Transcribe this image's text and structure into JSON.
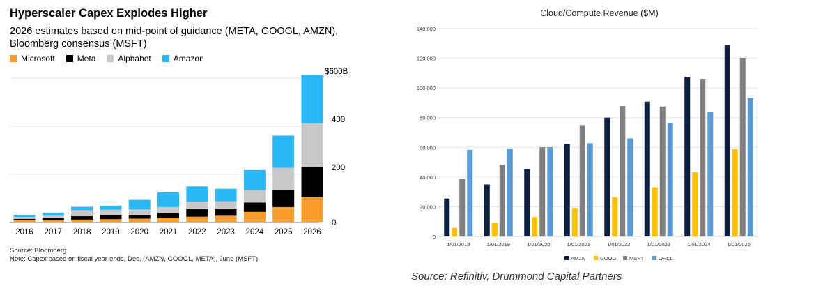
{
  "chart_data": [
    {
      "type": "bar",
      "stacked": true,
      "title": "Hyperscaler Capex Explodes Higher",
      "subtitle": "2026 estimates based on mid-point of guidance (META, GOOGL, AMZN), Bloomberg consensus (MSFT)",
      "categories": [
        "2016",
        "2017",
        "2018",
        "2019",
        "2020",
        "2021",
        "2022",
        "2023",
        "2024",
        "2025",
        "2026"
      ],
      "series": [
        {
          "name": "Microsoft",
          "color": "#f89c2c",
          "values": [
            10,
            10,
            12,
            14,
            16,
            20,
            24,
            28,
            44,
            64,
            105
          ]
        },
        {
          "name": "Meta",
          "color": "#000000",
          "values": [
            5,
            8,
            14,
            16,
            16,
            19,
            31,
            27,
            39,
            72,
            126
          ]
        },
        {
          "name": "Alphabet",
          "color": "#c8c8c8",
          "values": [
            8,
            10,
            25,
            23,
            22,
            25,
            32,
            33,
            52,
            91,
            181
          ]
        },
        {
          "name": "Amazon",
          "color": "#2bb8f6",
          "values": [
            8,
            13,
            14,
            17,
            40,
            61,
            63,
            52,
            83,
            134,
            201
          ]
        }
      ],
      "yticks": [
        "0",
        "200",
        "400",
        "$600B"
      ],
      "ylim": [
        0,
        600
      ],
      "source": "Source: Bloomberg",
      "note": "Note: Capex based on fiscal year-ends, Dec. (AMZN, GOOGL, META), June (MSFT)",
      "legend_position": "top-left"
    },
    {
      "type": "bar",
      "title": "Cloud/Compute Revenue ($M)",
      "categories": [
        "1/01/2018",
        "1/01/2019",
        "1/01/2020",
        "1/01/2021",
        "1/01/2022",
        "1/01/2023",
        "1/01/2024",
        "1/01/2025"
      ],
      "series": [
        {
          "name": "AMZN",
          "color": "#0c1f3f",
          "values": [
            25500,
            35000,
            45500,
            62300,
            80000,
            90800,
            107500,
            128700
          ]
        },
        {
          "name": "GOOG",
          "color": "#ffc000",
          "values": [
            5800,
            8900,
            13000,
            19200,
            26300,
            33100,
            43200,
            58700
          ]
        },
        {
          "name": "MSFT",
          "color": "#808080",
          "values": [
            39000,
            48200,
            60100,
            75000,
            87800,
            87500,
            106200,
            120300
          ]
        },
        {
          "name": "ORCL",
          "color": "#5b9bd5",
          "values": [
            58300,
            59300,
            60100,
            62800,
            66100,
            76500,
            84000,
            93200
          ]
        }
      ],
      "yticks": [
        "0",
        "20,000",
        "40,000",
        "60,000",
        "80,000",
        "100,000",
        "120,000",
        "140,000"
      ],
      "ylim": [
        0,
        140000
      ],
      "source": "Source: Refinitiv, Drummond Capital Partners",
      "legend_position": "bottom"
    }
  ]
}
